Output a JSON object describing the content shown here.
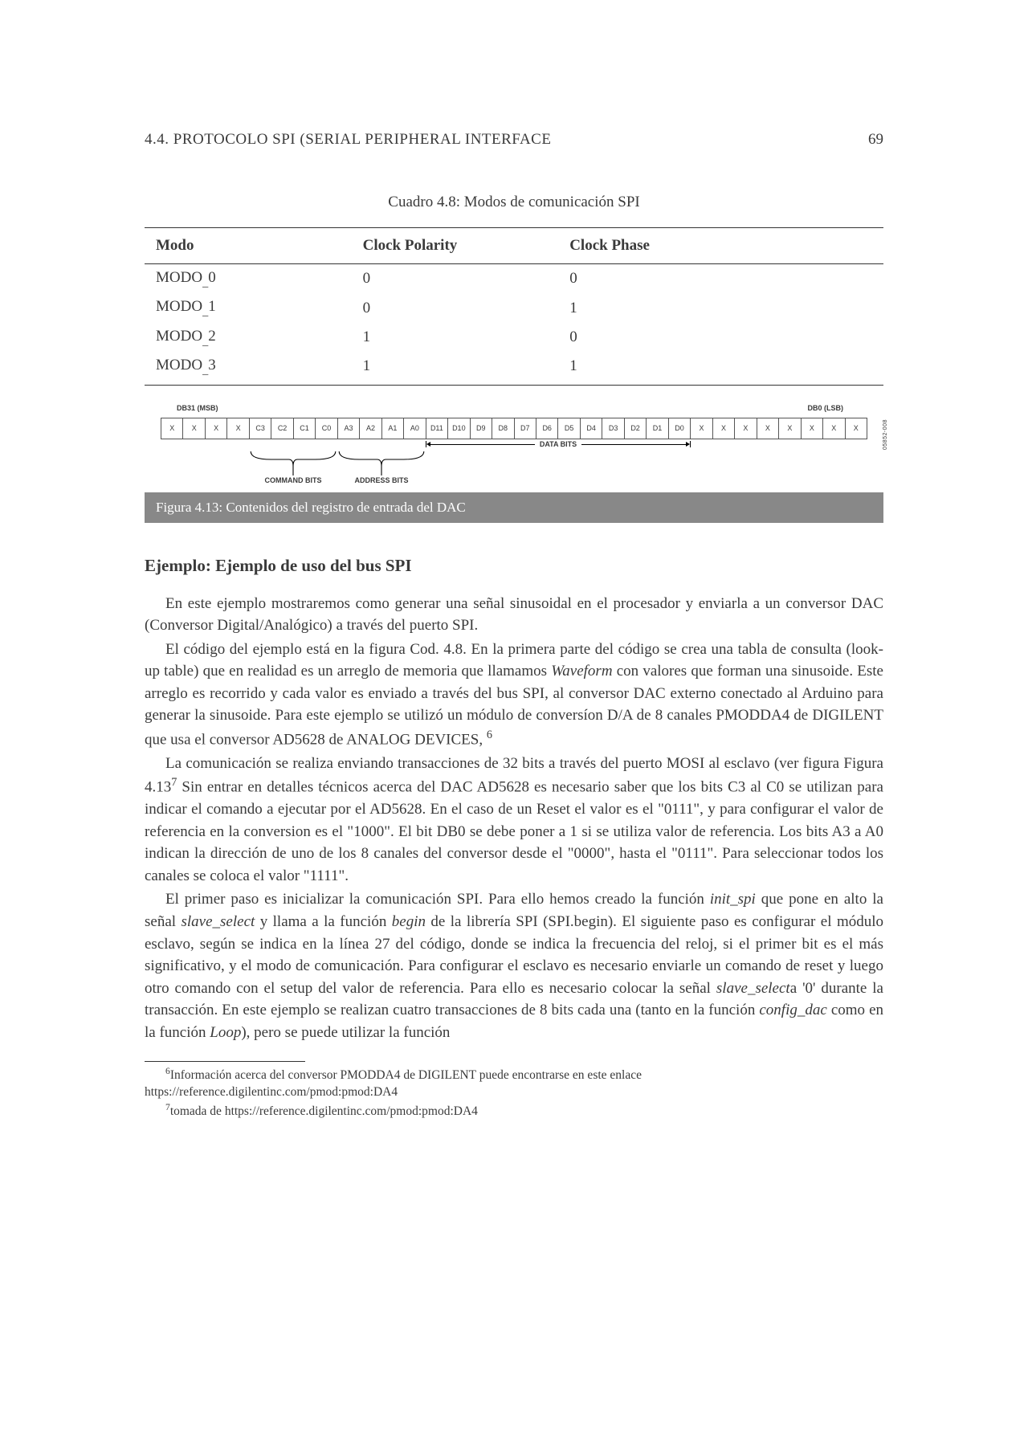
{
  "header": {
    "section_label": "4.4.  PROTOCOLO SPI (SERIAL PERIPHERAL INTERFACE",
    "page_number": "69"
  },
  "table": {
    "caption": "Cuadro 4.8: Modos de comunicación SPI",
    "columns": {
      "mode": "Modo",
      "polarity": "Clock Polarity",
      "phase": "Clock Phase"
    },
    "rows": [
      {
        "mode_prefix": "MODO",
        "mode_sub": "0",
        "polarity": "0",
        "phase": "0"
      },
      {
        "mode_prefix": "MODO",
        "mode_sub": "1",
        "polarity": "0",
        "phase": "1"
      },
      {
        "mode_prefix": "MODO",
        "mode_sub": "2",
        "polarity": "1",
        "phase": "0"
      },
      {
        "mode_prefix": "MODO",
        "mode_sub": "3",
        "polarity": "1",
        "phase": "1"
      }
    ]
  },
  "register": {
    "msb_label": "DB31 (MSB)",
    "lsb_label": "DB0 (LSB)",
    "bits": [
      "X",
      "X",
      "X",
      "X",
      "C3",
      "C2",
      "C1",
      "C0",
      "A3",
      "A2",
      "A1",
      "A0",
      "D11",
      "D10",
      "D9",
      "D8",
      "D7",
      "D6",
      "D5",
      "D4",
      "D3",
      "D2",
      "D1",
      "D0",
      "X",
      "X",
      "X",
      "X",
      "X",
      "X",
      "X",
      "X"
    ],
    "command_label": "COMMAND BITS",
    "address_label": "ADDRESS BITS",
    "data_label": "DATA BITS",
    "side_vert": "05852-008"
  },
  "figure_caption": "Figura 4.13: Contenidos del registro de entrada del DAC",
  "section_heading": "Ejemplo: Ejemplo de uso del bus SPI",
  "body": {
    "p1": "En este ejemplo mostraremos como generar una señal sinusoidal en el procesador y enviarla a un conversor DAC (Conversor Digital/Analógico) a través del puerto SPI.",
    "p2a": "El código del ejemplo está en la figura Cod. 4.8. En la primera parte del código se crea una tabla de consulta (look-up table) que en realidad es un arreglo de memoria que llamamos ",
    "p2_waveform": "Waveform",
    "p2b": " con valores que forman una sinusoide. Este arreglo es recorrido y cada valor es enviado a través del bus SPI, al conversor DAC externo conectado al Arduino para generar la sinusoide. Para este ejemplo se utilizó un módulo de conversíon D/A de 8 canales PMODDA4 de DIGILENT que usa el conversor AD5628 de ANALOG DEVICES, ",
    "p2_sup": "6",
    "p3a": "La comunicación se realiza enviando transacciones de 32 bits a través del puerto MOSI al esclavo (ver figura Figura 4.13",
    "p3_sup": "7",
    "p3b": " Sin entrar en detalles técnicos acerca del DAC AD5628 es necesario saber que los bits C3 al C0 se utilizan para indicar el comando a ejecutar por el AD5628. En el caso de un Reset el valor es el \"0111\", y para configurar el valor de referencia en la conversion es el \"1000\". El bit DB0 se debe poner a 1 si se utiliza valor de referencia. Los bits A3 a A0 indican la dirección de uno de los 8 canales del conversor desde el \"0000\", hasta el \"0111\". Para seleccionar todos los canales se coloca el valor \"1111\".",
    "p4a": "El primer paso es inicializar la comunicación SPI. Para ello hemos creado la función ",
    "p4_initspi": "init_spi",
    "p4b": " que pone en alto la señal ",
    "p4_slavesel1": "slave_select",
    "p4c": " y llama a la función ",
    "p4_begin": "begin",
    "p4d": " de la librería SPI (SPI.begin). El siguiente paso es configurar el módulo esclavo, según se indica en la línea 27 del código, donde se indica la frecuencia del reloj, si el primer bit es el más significativo, y el modo de comunicación. Para configurar el esclavo es necesario enviarle un comando de reset y luego otro comando con el setup del valor de referencia. Para ello es necesario colocar la señal ",
    "p4_slavesel2": "slave_select",
    "p4e": "a '0' durante la transacción. En este ejemplo se realizan cuatro transacciones de 8 bits cada una (tanto  en la función ",
    "p4_configdac": "config_dac",
    "p4f": " como en la función ",
    "p4_loop": "Loop",
    "p4g": "), pero se puede utilizar la función"
  },
  "footnotes": {
    "f6_sup": "6",
    "f6_text": "Información acerca del conversor PMODDA4 de DIGILENT puede encontrarse en este enlace https://reference.digilentinc.com/pmod:pmod:DA4",
    "f7_sup": "7",
    "f7_text": "tomada de https://reference.digilentinc.com/pmod:pmod:DA4"
  }
}
